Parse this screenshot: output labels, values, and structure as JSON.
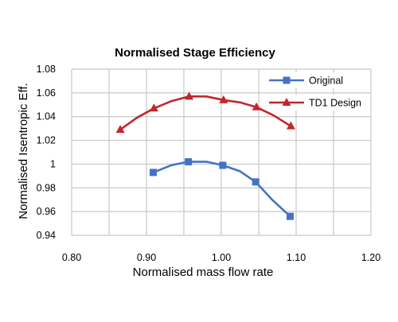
{
  "chart_data": {
    "type": "line",
    "title": "Normalised Stage Efficiency",
    "xlabel": "Normalised mass flow rate",
    "ylabel": "Normalised Isentropic Eff.",
    "xlim": [
      0.8,
      1.2
    ],
    "ylim": [
      0.94,
      1.08
    ],
    "xticks": [
      "0.80",
      "0.90",
      "1.00",
      "1.10",
      "1.20"
    ],
    "yticks": [
      "0.94",
      "0.96",
      "0.98",
      "1",
      "1.02",
      "1.04",
      "1.06",
      "1.08"
    ],
    "grid": true,
    "legend_position": "top-right",
    "series": [
      {
        "name": "Original",
        "color": "#4472c4",
        "marker": "square",
        "x": [
          0.909,
          0.933,
          0.956,
          0.98,
          1.002,
          1.025,
          1.046,
          1.068,
          1.092
        ],
        "y": [
          0.993,
          0.999,
          1.002,
          1.002,
          0.999,
          0.994,
          0.985,
          0.97,
          0.956
        ],
        "marker_x": [
          0.909,
          0.956,
          1.002,
          1.046,
          1.092
        ],
        "marker_y": [
          0.993,
          1.002,
          0.999,
          0.985,
          0.956
        ]
      },
      {
        "name": "TD1 Design",
        "color": "#c0282d",
        "marker": "triangle",
        "x": [
          0.865,
          0.887,
          0.91,
          0.933,
          0.957,
          0.98,
          1.003,
          1.025,
          1.047,
          1.07,
          1.093
        ],
        "y": [
          1.029,
          1.039,
          1.047,
          1.053,
          1.057,
          1.057,
          1.054,
          1.052,
          1.048,
          1.041,
          1.032
        ],
        "marker_x": [
          0.865,
          0.91,
          0.957,
          1.003,
          1.047,
          1.093
        ],
        "marker_y": [
          1.029,
          1.047,
          1.057,
          1.054,
          1.048,
          1.032
        ]
      }
    ]
  }
}
